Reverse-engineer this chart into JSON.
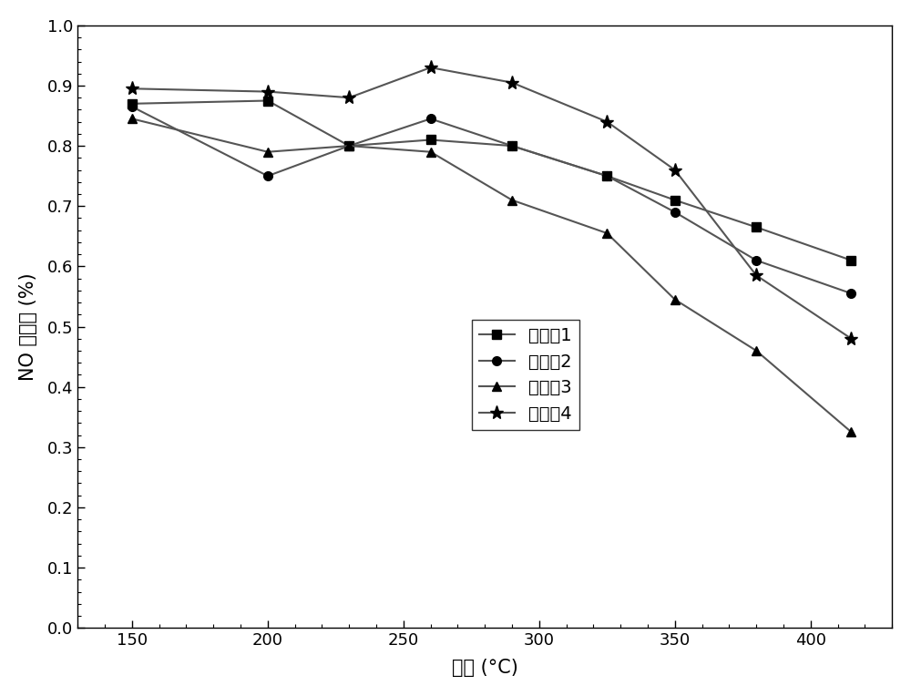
{
  "x": [
    150,
    200,
    230,
    260,
    290,
    325,
    350,
    380,
    415
  ],
  "series": [
    {
      "label": "实施入1",
      "y": [
        0.87,
        0.875,
        0.8,
        0.81,
        0.8,
        0.75,
        0.71,
        0.665,
        0.61
      ],
      "marker": "s",
      "color": "#000000"
    },
    {
      "label": "实施入2",
      "y": [
        0.865,
        0.75,
        0.8,
        0.845,
        0.8,
        0.75,
        0.69,
        0.61,
        0.555
      ],
      "marker": "o",
      "color": "#000000"
    },
    {
      "label": "实施入3",
      "y": [
        0.845,
        0.79,
        0.8,
        0.79,
        0.71,
        0.655,
        0.545,
        0.46,
        0.325
      ],
      "marker": "^",
      "color": "#000000"
    },
    {
      "label": "实施入4",
      "y": [
        0.895,
        0.89,
        0.88,
        0.93,
        0.905,
        0.84,
        0.76,
        0.585,
        0.48
      ],
      "marker": "*",
      "color": "#000000"
    }
  ],
  "xlabel": "温度 (°C)",
  "ylabel": "NO 转化率 (%)",
  "xlim": [
    130,
    430
  ],
  "ylim": [
    0.0,
    1.0
  ],
  "yticks": [
    0.0,
    0.1,
    0.2,
    0.3,
    0.4,
    0.5,
    0.6,
    0.7,
    0.8,
    0.9,
    1.0
  ],
  "xticks": [
    150,
    200,
    250,
    300,
    350,
    400
  ],
  "background_color": "#ffffff",
  "linewidth": 1.5,
  "markersize": 7,
  "star_markersize": 11
}
